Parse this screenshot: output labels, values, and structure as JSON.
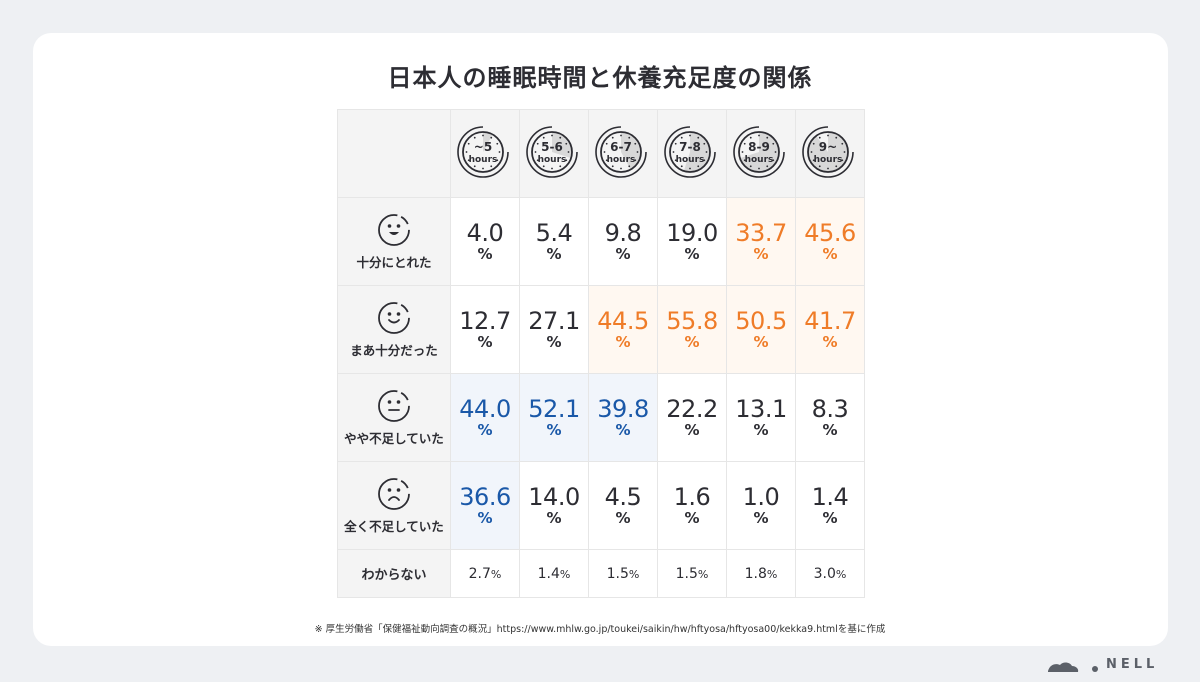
{
  "title": "日本人の睡眠時間と休養充足度の関係",
  "columns": [
    {
      "top": "~5",
      "bottom": "hours",
      "fill": 0.08
    },
    {
      "top": "5-6",
      "bottom": "hours",
      "fill": 0.3
    },
    {
      "top": "6-7",
      "bottom": "hours",
      "fill": 0.42
    },
    {
      "top": "7-8",
      "bottom": "hours",
      "fill": 0.55
    },
    {
      "top": "8-9",
      "bottom": "hours",
      "fill": 0.7
    },
    {
      "top": "9~",
      "bottom": "hours",
      "fill": 0.9
    }
  ],
  "rows": [
    {
      "label": "十分にとれた",
      "face": "big-smile-icon",
      "cells": [
        {
          "num": "4.0",
          "pct": "%",
          "hl": ""
        },
        {
          "num": "5.4",
          "pct": "%",
          "hl": ""
        },
        {
          "num": "9.8",
          "pct": "%",
          "hl": ""
        },
        {
          "num": "19.0",
          "pct": "%",
          "hl": ""
        },
        {
          "num": "33.7",
          "pct": "%",
          "hl": "orange"
        },
        {
          "num": "45.6",
          "pct": "%",
          "hl": "orange"
        }
      ]
    },
    {
      "label": "まあ十分だった",
      "face": "smile-icon",
      "cells": [
        {
          "num": "12.7",
          "pct": "%",
          "hl": ""
        },
        {
          "num": "27.1",
          "pct": "%",
          "hl": ""
        },
        {
          "num": "44.5",
          "pct": "%",
          "hl": "orange"
        },
        {
          "num": "55.8",
          "pct": "%",
          "hl": "orange"
        },
        {
          "num": "50.5",
          "pct": "%",
          "hl": "orange"
        },
        {
          "num": "41.7",
          "pct": "%",
          "hl": "orange"
        }
      ]
    },
    {
      "label": "やや不足していた",
      "face": "neutral-face-icon",
      "cells": [
        {
          "num": "44.0",
          "pct": "%",
          "hl": "blue"
        },
        {
          "num": "52.1",
          "pct": "%",
          "hl": "blue"
        },
        {
          "num": "39.8",
          "pct": "%",
          "hl": "blue"
        },
        {
          "num": "22.2",
          "pct": "%",
          "hl": ""
        },
        {
          "num": "13.1",
          "pct": "%",
          "hl": ""
        },
        {
          "num": "8.3",
          "pct": "%",
          "hl": ""
        }
      ]
    },
    {
      "label": "全く不足していた",
      "face": "sad-face-icon",
      "cells": [
        {
          "num": "36.6",
          "pct": "%",
          "hl": "blue"
        },
        {
          "num": "14.0",
          "pct": "%",
          "hl": ""
        },
        {
          "num": "4.5",
          "pct": "%",
          "hl": ""
        },
        {
          "num": "1.6",
          "pct": "%",
          "hl": ""
        },
        {
          "num": "1.0",
          "pct": "%",
          "hl": ""
        },
        {
          "num": "1.4",
          "pct": "%",
          "hl": ""
        }
      ]
    }
  ],
  "last_row": {
    "label": "わからない",
    "cells": [
      {
        "num": "2.7",
        "pct": "%"
      },
      {
        "num": "1.4",
        "pct": "%"
      },
      {
        "num": "1.5",
        "pct": "%"
      },
      {
        "num": "1.5",
        "pct": "%"
      },
      {
        "num": "1.8",
        "pct": "%"
      },
      {
        "num": "3.0",
        "pct": "%"
      }
    ]
  },
  "note": "※ 厚生労働省「保健福祉動向調査の概況」https://www.mhlw.go.jp/toukei/saikin/hw/hftyosa/hftyosa00/kekka9.htmlを基に作成",
  "logo": "NELL",
  "colors": {
    "orange": "#ef7c28",
    "blue": "#1a58a8",
    "orange_bg": "#fff8f1",
    "blue_bg": "#f1f5fb"
  },
  "chart_data": {
    "type": "table",
    "title": "日本人の睡眠時間と休養充足度の関係",
    "categories": [
      "~5 hours",
      "5-6 hours",
      "6-7 hours",
      "7-8 hours",
      "8-9 hours",
      "9~ hours"
    ],
    "series": [
      {
        "name": "十分にとれた",
        "values": [
          4.0,
          5.4,
          9.8,
          19.0,
          33.7,
          45.6
        ]
      },
      {
        "name": "まあ十分だった",
        "values": [
          12.7,
          27.1,
          44.5,
          55.8,
          50.5,
          41.7
        ]
      },
      {
        "name": "やや不足していた",
        "values": [
          44.0,
          52.1,
          39.8,
          22.2,
          13.1,
          8.3
        ]
      },
      {
        "name": "全く不足していた",
        "values": [
          36.6,
          14.0,
          4.5,
          1.6,
          1.0,
          1.4
        ]
      },
      {
        "name": "わからない",
        "values": [
          2.7,
          1.4,
          1.5,
          1.5,
          1.8,
          3.0
        ]
      }
    ]
  }
}
